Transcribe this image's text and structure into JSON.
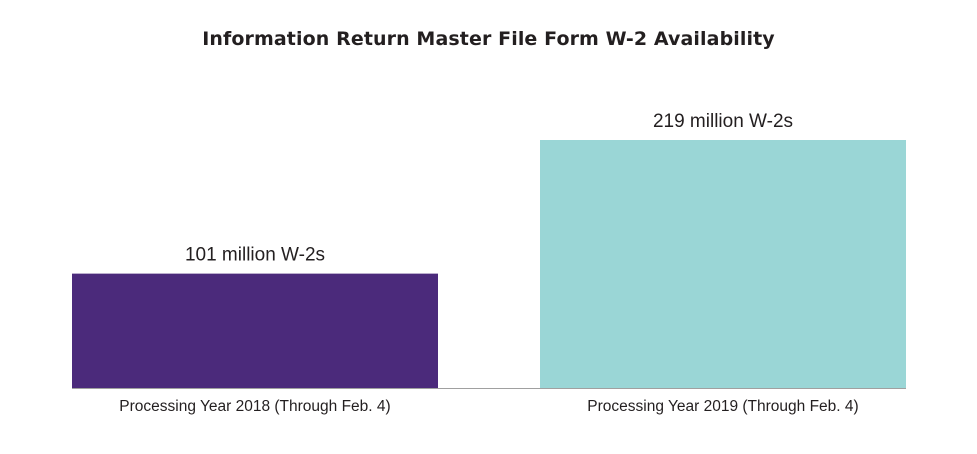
{
  "chart_data": {
    "type": "bar",
    "title": "Information Return Master File Form W-2 Availability",
    "xlabel": "",
    "ylabel": "",
    "categories": [
      "Processing Year 2018 (Through Feb. 4)",
      "Processing Year 2019 (Through Feb. 4)"
    ],
    "values": [
      101,
      219
    ],
    "data_labels": [
      "101 million W-2s",
      "219 million W-2s"
    ],
    "colors": [
      "#4b2a7b",
      "#9ad6d6"
    ],
    "ylim": [
      0,
      219
    ],
    "grid": false,
    "legend": "none"
  },
  "colors": {
    "baseline": "#a0a0a0",
    "text": "#231f20"
  }
}
